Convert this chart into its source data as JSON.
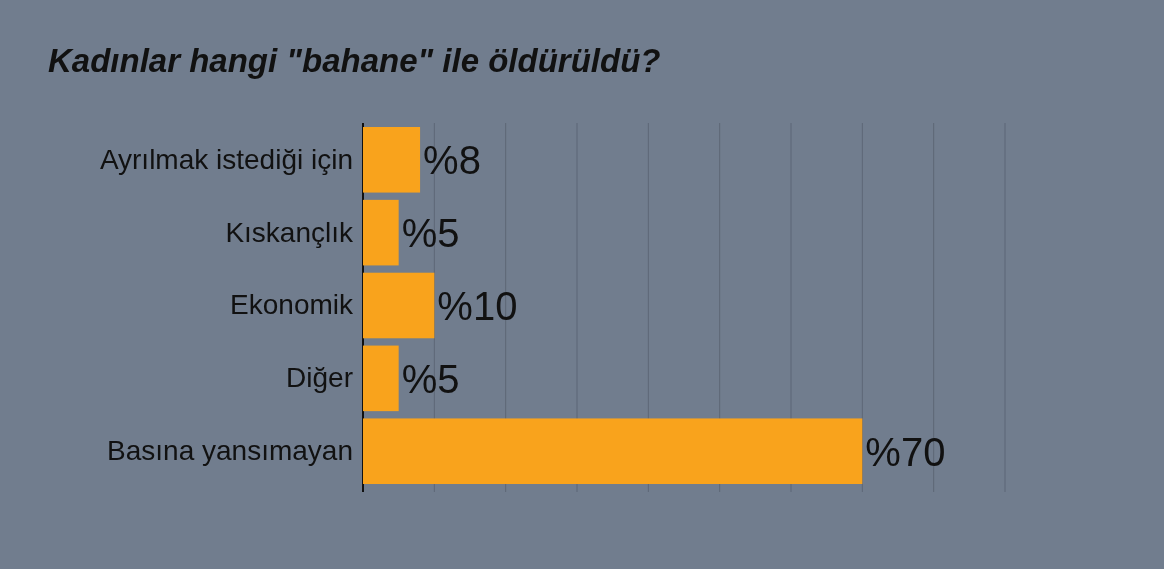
{
  "chart_data": {
    "type": "bar",
    "orientation": "horizontal",
    "title": "Kadınlar hangi \"bahane\" ile öldürüldü?",
    "categories": [
      "Ayrılmak istediği için",
      "Kıskançlık",
      "Ekonomik",
      "Diğer",
      "Basına yansımayan"
    ],
    "values": [
      8,
      5,
      10,
      5,
      70
    ],
    "color": "#f9a31c",
    "value_labels": [
      "%8",
      "%5",
      "%10",
      "%5",
      "%70"
    ],
    "xlim": [
      0,
      90
    ],
    "xticks": [
      {
        "value": 0,
        "label": null
      },
      {
        "value": 10,
        "label": null
      },
      {
        "value": 20,
        "label": null
      },
      {
        "value": 30,
        "label": null
      },
      {
        "value": 40,
        "label": null
      },
      {
        "value": 50,
        "label": null
      },
      {
        "value": 60,
        "label": null
      },
      {
        "value": 70,
        "label": null
      },
      {
        "value": 80,
        "label": null
      },
      {
        "value": 90,
        "label": null
      }
    ],
    "grid": "x",
    "tick_labels": "y"
  }
}
